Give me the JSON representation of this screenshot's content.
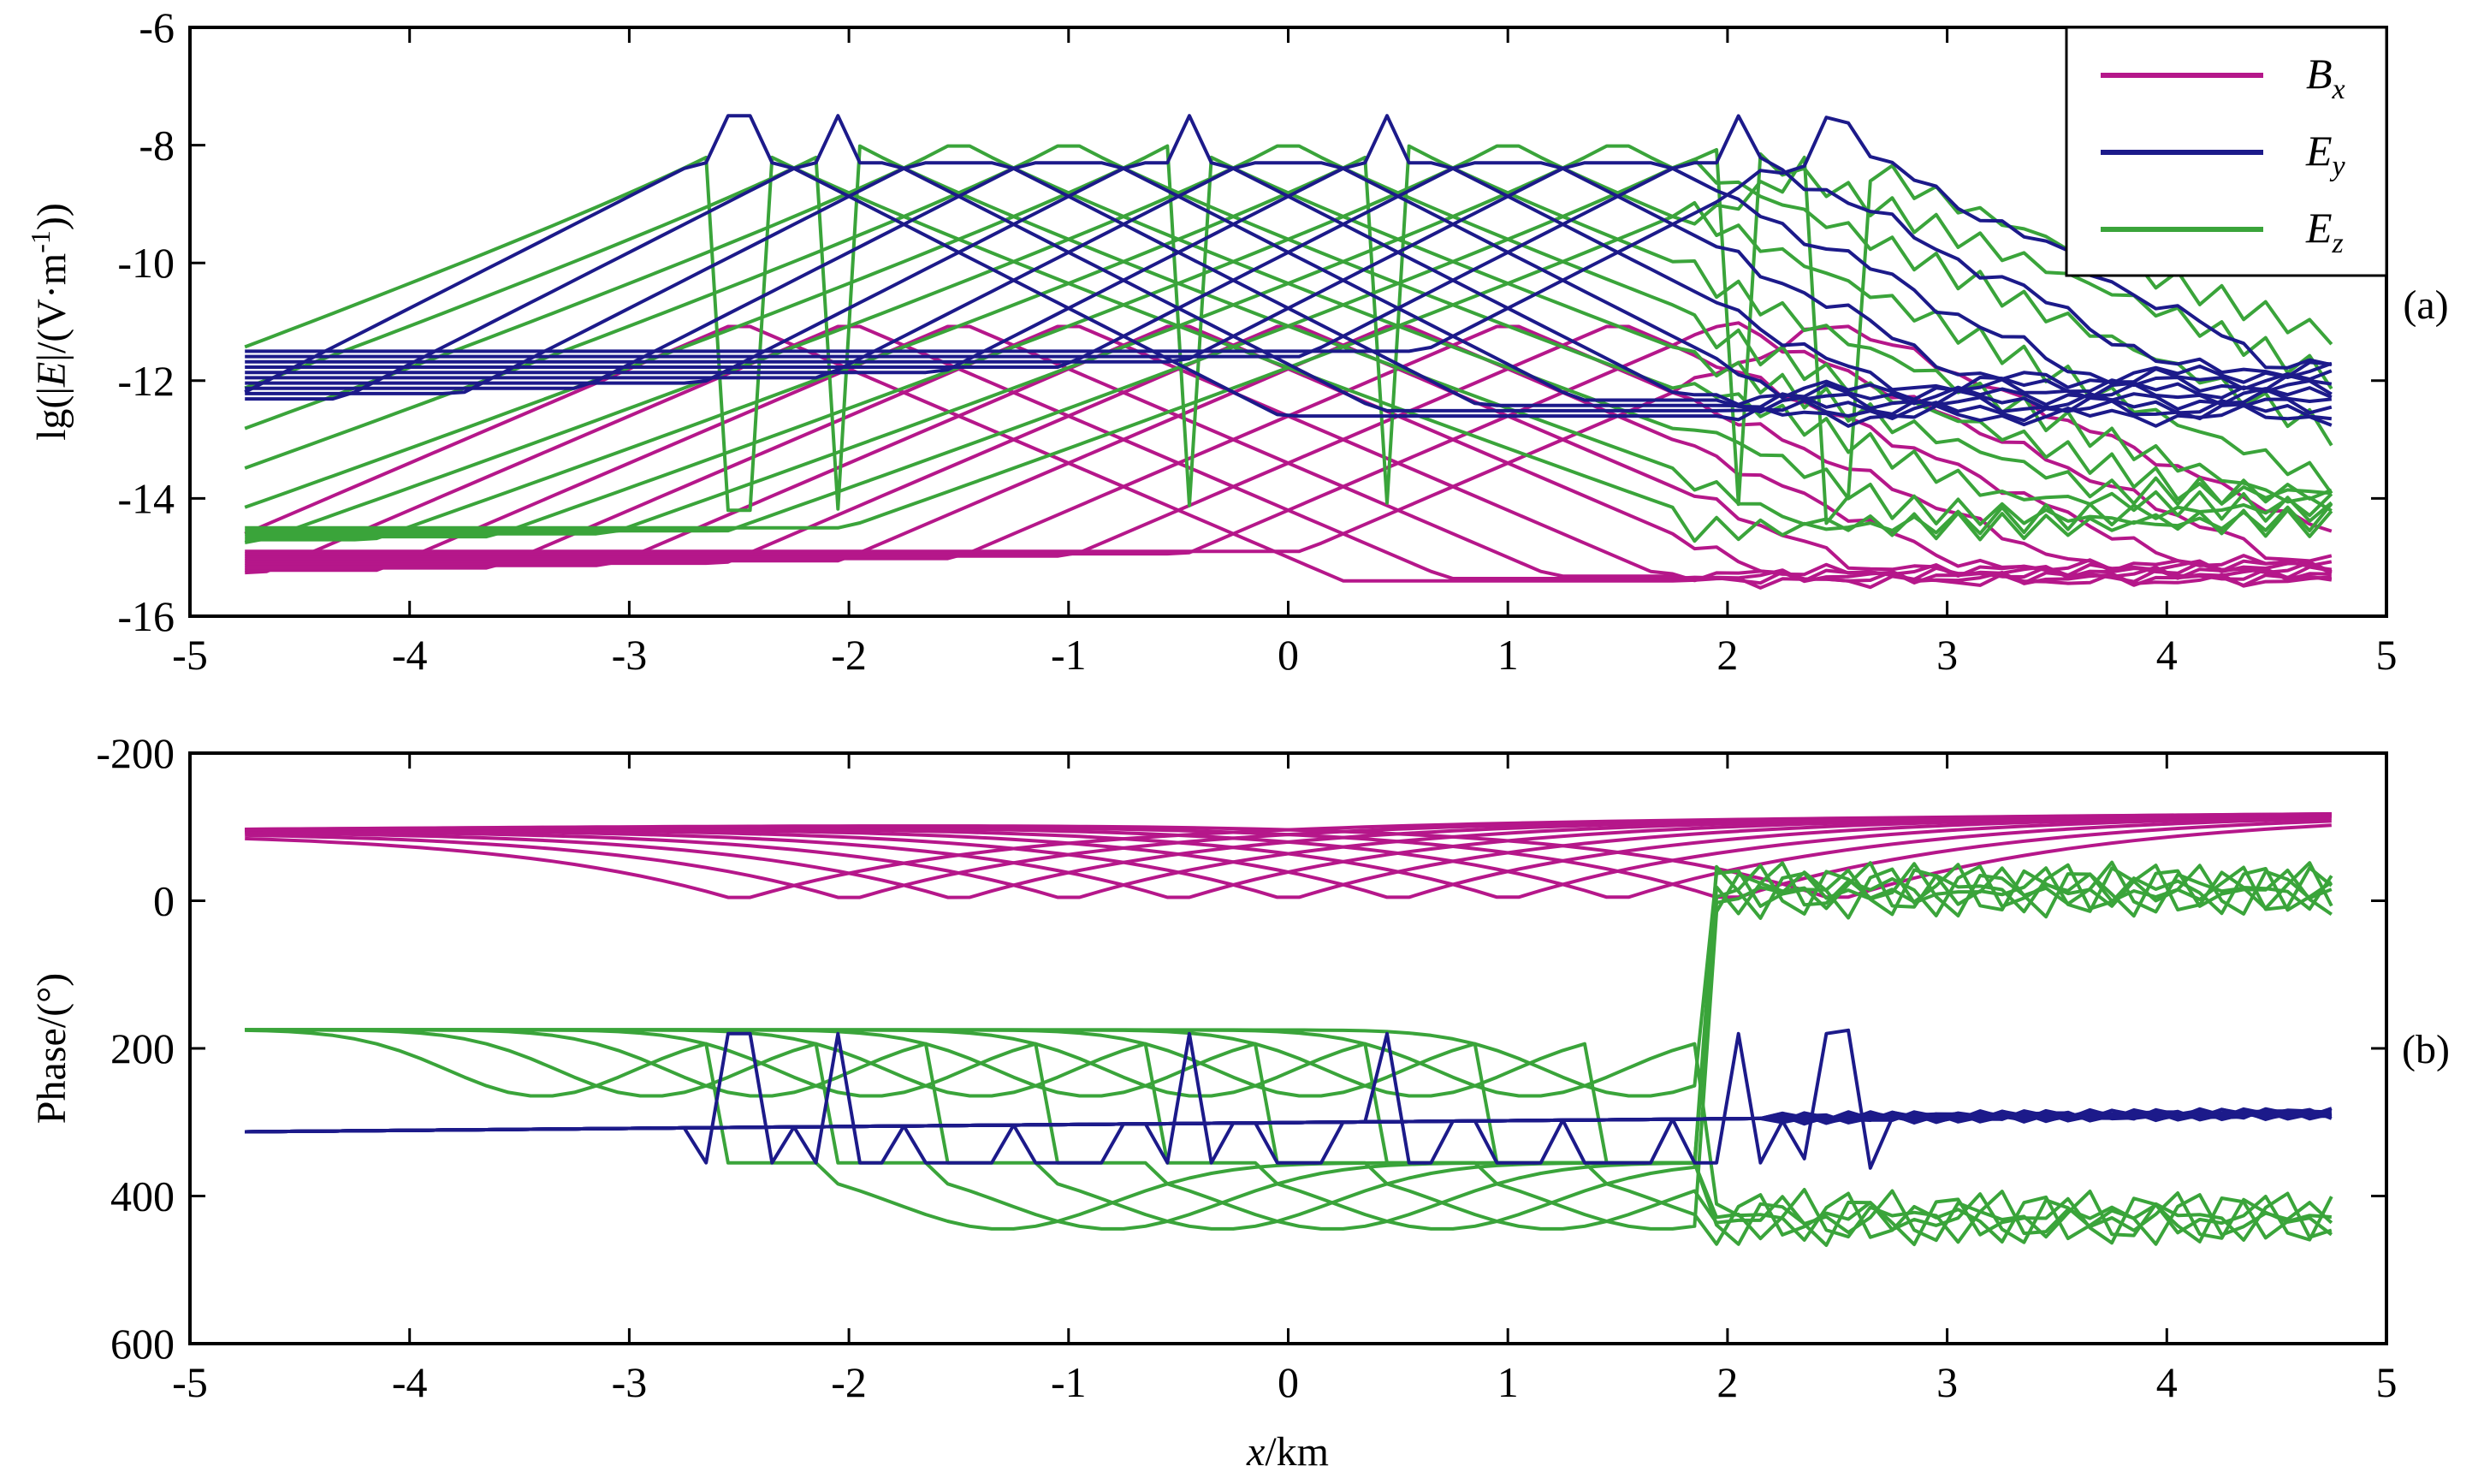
{
  "colors": {
    "Bx": "#b5178a",
    "Ey": "#1c1a8a",
    "Ez": "#3aa43a",
    "axis": "#000000"
  },
  "chart_data": [
    {
      "id": "a",
      "type": "line",
      "panel_label": "(a)",
      "ylabel": "lg(|E|/(V·m-1))",
      "ylabel_parts": {
        "main": "lg(|",
        "italic": "E",
        "mid": "|/(V·m",
        "sup": "-1",
        "end": "))"
      },
      "xlabel": "",
      "xlim": [
        -5,
        5
      ],
      "ylim": [
        -16,
        -6
      ],
      "y_reversed": false,
      "xticks": [
        -5,
        -4,
        -3,
        -2,
        -1,
        0,
        1,
        2,
        3,
        4,
        5
      ],
      "xtick_labels": [
        "-5",
        "-4",
        "-3",
        "-2",
        "-1",
        "0",
        "1",
        "2",
        "3",
        "4",
        "5"
      ],
      "yticks": [
        -16,
        -14,
        -12,
        -10,
        -8,
        -6
      ],
      "ytick_labels": [
        "-16",
        "-14",
        "-12",
        "-10",
        "-8",
        "-6"
      ],
      "legend": {
        "position": "top-right",
        "entries": [
          {
            "series": "Bx",
            "label_main": "B",
            "label_sub": "x"
          },
          {
            "series": "Ey",
            "label_main": "E",
            "label_sub": "y"
          },
          {
            "series": "Ez",
            "label_main": "E",
            "label_sub": "z"
          }
        ]
      },
      "families": {
        "source_positions_km": [
          -2.5,
          -2.0,
          -1.5,
          -1.0,
          -0.5,
          0.0,
          0.5,
          1.0,
          1.5,
          2.0,
          2.5
        ],
        "x_range_km": [
          -4.75,
          4.8
        ],
        "Bx": {
          "peak": -11.0,
          "floor_left": -15.3,
          "floor_right": -15.4,
          "decay_per_km": 1.6
        },
        "Ey": {
          "peak": -7.5,
          "shoulder": -8.3,
          "far_left": -12.4,
          "far_right": -12.6,
          "decay_per_km": 1.9
        },
        "Ez": {
          "peak": -7.9,
          "notch": -14.2,
          "far_left": -15.0,
          "far_right": -14.3,
          "decay_per_km": 1.7
        }
      }
    },
    {
      "id": "b",
      "type": "line",
      "panel_label": "(b)",
      "ylabel": "Phase/(°)",
      "xlabel_parts": {
        "italic": "x",
        "rest": "/km"
      },
      "xlabel": "x/km",
      "xlim": [
        -5,
        5
      ],
      "ylim": [
        -200,
        600
      ],
      "y_reversed": true,
      "xticks": [
        -5,
        -4,
        -3,
        -2,
        -1,
        0,
        1,
        2,
        3,
        4,
        5
      ],
      "xtick_labels": [
        "-5",
        "-4",
        "-3",
        "-2",
        "-1",
        "0",
        "1",
        "2",
        "3",
        "4",
        "5"
      ],
      "yticks": [
        -200,
        0,
        200,
        400,
        600
      ],
      "ytick_labels": [
        "-200",
        "0",
        "200",
        "400",
        "600"
      ],
      "families": {
        "source_positions_km": [
          -2.5,
          -2.0,
          -1.5,
          -1.0,
          -0.5,
          0.0,
          0.5,
          1.0,
          1.5,
          2.0,
          2.5
        ],
        "x_range_km": [
          -4.75,
          4.8
        ],
        "Bx": {
          "left": -97,
          "right": -118,
          "dip": 0
        },
        "Ey": {
          "base_left": 313,
          "base_right": 288,
          "spike": 180,
          "shoulder": 355
        },
        "Ez": {
          "upper_left": 175,
          "upper_jump": 0,
          "upper_right": -15,
          "lower_left": 355,
          "lower_right": 430
        }
      }
    }
  ]
}
